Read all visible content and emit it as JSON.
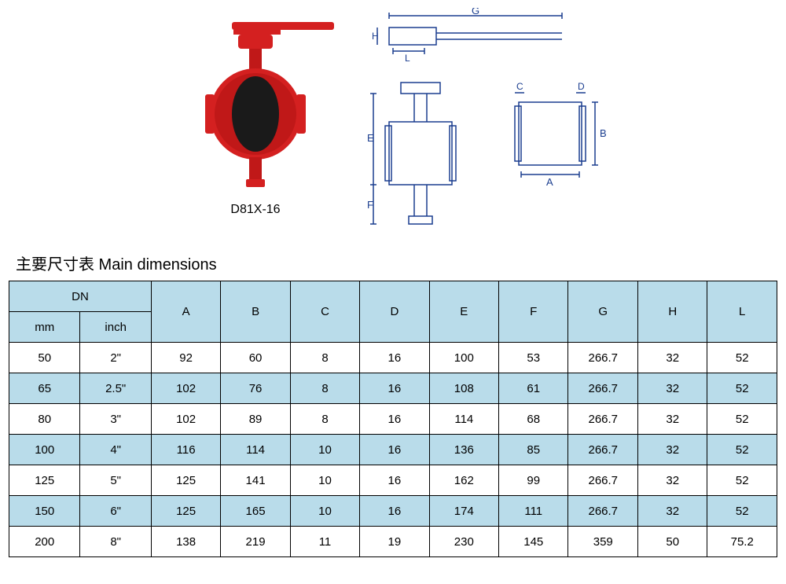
{
  "product": {
    "model": "D81X-16"
  },
  "title": "主要尺寸表 Main dimensions",
  "table": {
    "header_colors": {
      "background": "#b9dcea",
      "border": "#000000"
    },
    "row_alt_color": "#b9dcea",
    "row_white_color": "#ffffff",
    "dn_label": "DN",
    "dn_mm_label": "mm",
    "dn_inch_label": "inch",
    "columns": [
      "A",
      "B",
      "C",
      "D",
      "E",
      "F",
      "G",
      "H",
      "L"
    ],
    "rows": [
      {
        "mm": "50",
        "inch": "2\"",
        "vals": [
          "92",
          "60",
          "8",
          "16",
          "100",
          "53",
          "266.7",
          "32",
          "52"
        ]
      },
      {
        "mm": "65",
        "inch": "2.5\"",
        "vals": [
          "102",
          "76",
          "8",
          "16",
          "108",
          "61",
          "266.7",
          "32",
          "52"
        ]
      },
      {
        "mm": "80",
        "inch": "3\"",
        "vals": [
          "102",
          "89",
          "8",
          "16",
          "114",
          "68",
          "266.7",
          "32",
          "52"
        ]
      },
      {
        "mm": "100",
        "inch": "4\"",
        "vals": [
          "116",
          "114",
          "10",
          "16",
          "136",
          "85",
          "266.7",
          "32",
          "52"
        ]
      },
      {
        "mm": "125",
        "inch": "5\"",
        "vals": [
          "125",
          "141",
          "10",
          "16",
          "162",
          "99",
          "266.7",
          "32",
          "52"
        ]
      },
      {
        "mm": "150",
        "inch": "6\"",
        "vals": [
          "125",
          "165",
          "10",
          "16",
          "174",
          "111",
          "266.7",
          "32",
          "52"
        ]
      },
      {
        "mm": "200",
        "inch": "8\"",
        "vals": [
          "138",
          "219",
          "11",
          "19",
          "230",
          "145",
          "359",
          "50",
          "75.2"
        ]
      }
    ]
  },
  "drawing": {
    "labels": [
      "G",
      "H",
      "L",
      "E",
      "F",
      "A",
      "B",
      "C",
      "D"
    ],
    "line_color": "#1a3d8f",
    "valve_color": "#d42020"
  }
}
